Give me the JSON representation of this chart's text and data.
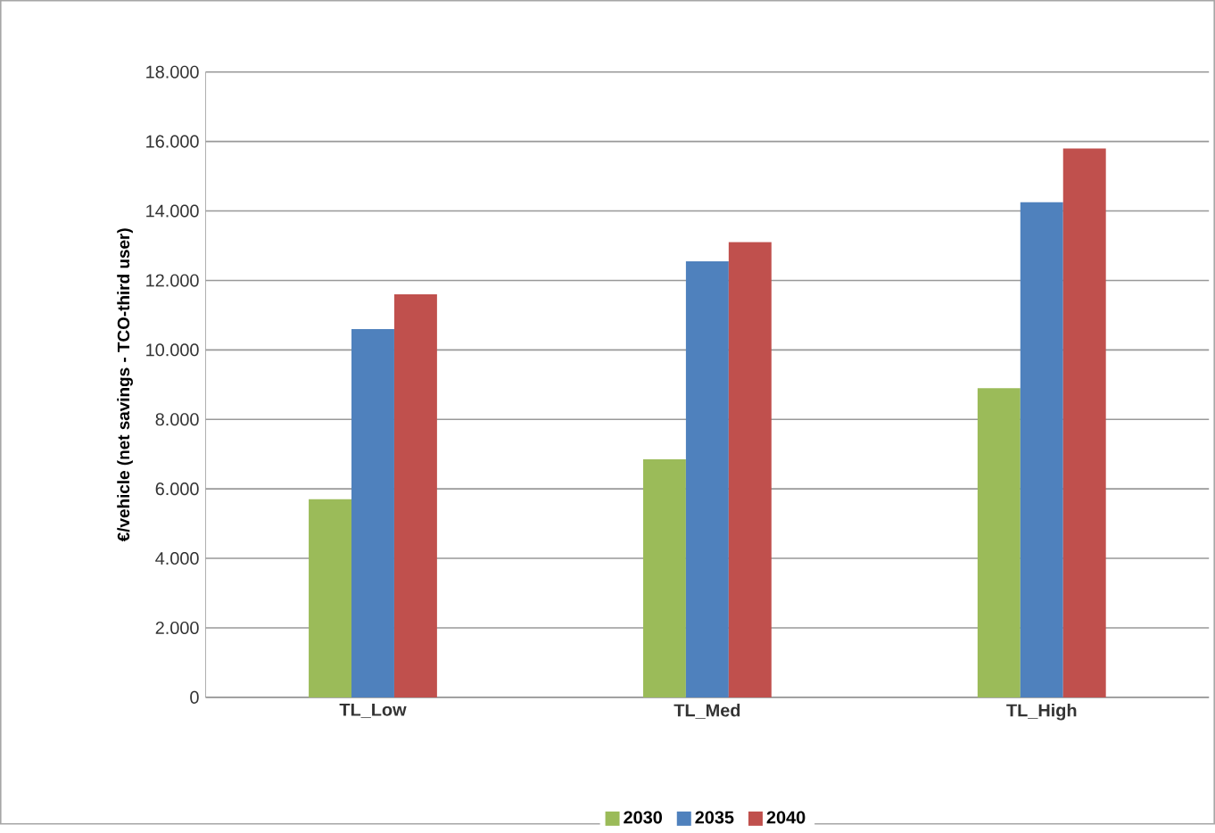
{
  "chart_data": {
    "type": "bar",
    "ylabel": "€/vehicle (net savings - TCO-third user)",
    "categories": [
      "TL_Low",
      "TL_Med",
      "TL_High"
    ],
    "series": [
      {
        "name": "2030",
        "color": "#9bbb59",
        "values": [
          5700,
          6850,
          8900
        ]
      },
      {
        "name": "2035",
        "color": "#4f81bd",
        "values": [
          10600,
          12550,
          14250
        ]
      },
      {
        "name": "2040",
        "color": "#c0504d",
        "values": [
          11600,
          13100,
          15800
        ]
      }
    ],
    "ylim": [
      0,
      18000
    ],
    "yticks": [
      0,
      {
        "value": 2000,
        "label": "2.000"
      },
      {
        "value": 4000,
        "label": "4.000"
      },
      {
        "value": 6000,
        "label": "6.000"
      },
      {
        "value": 8000,
        "label": "8.000"
      },
      {
        "value": 10000,
        "label": "10.000"
      },
      {
        "value": 12000,
        "label": "12.000"
      },
      {
        "value": 14000,
        "label": "14.000"
      },
      {
        "value": 16000,
        "label": "16.000"
      },
      {
        "value": 18000,
        "label": "18.000"
      }
    ],
    "grid": "y",
    "legend": "bottom"
  }
}
